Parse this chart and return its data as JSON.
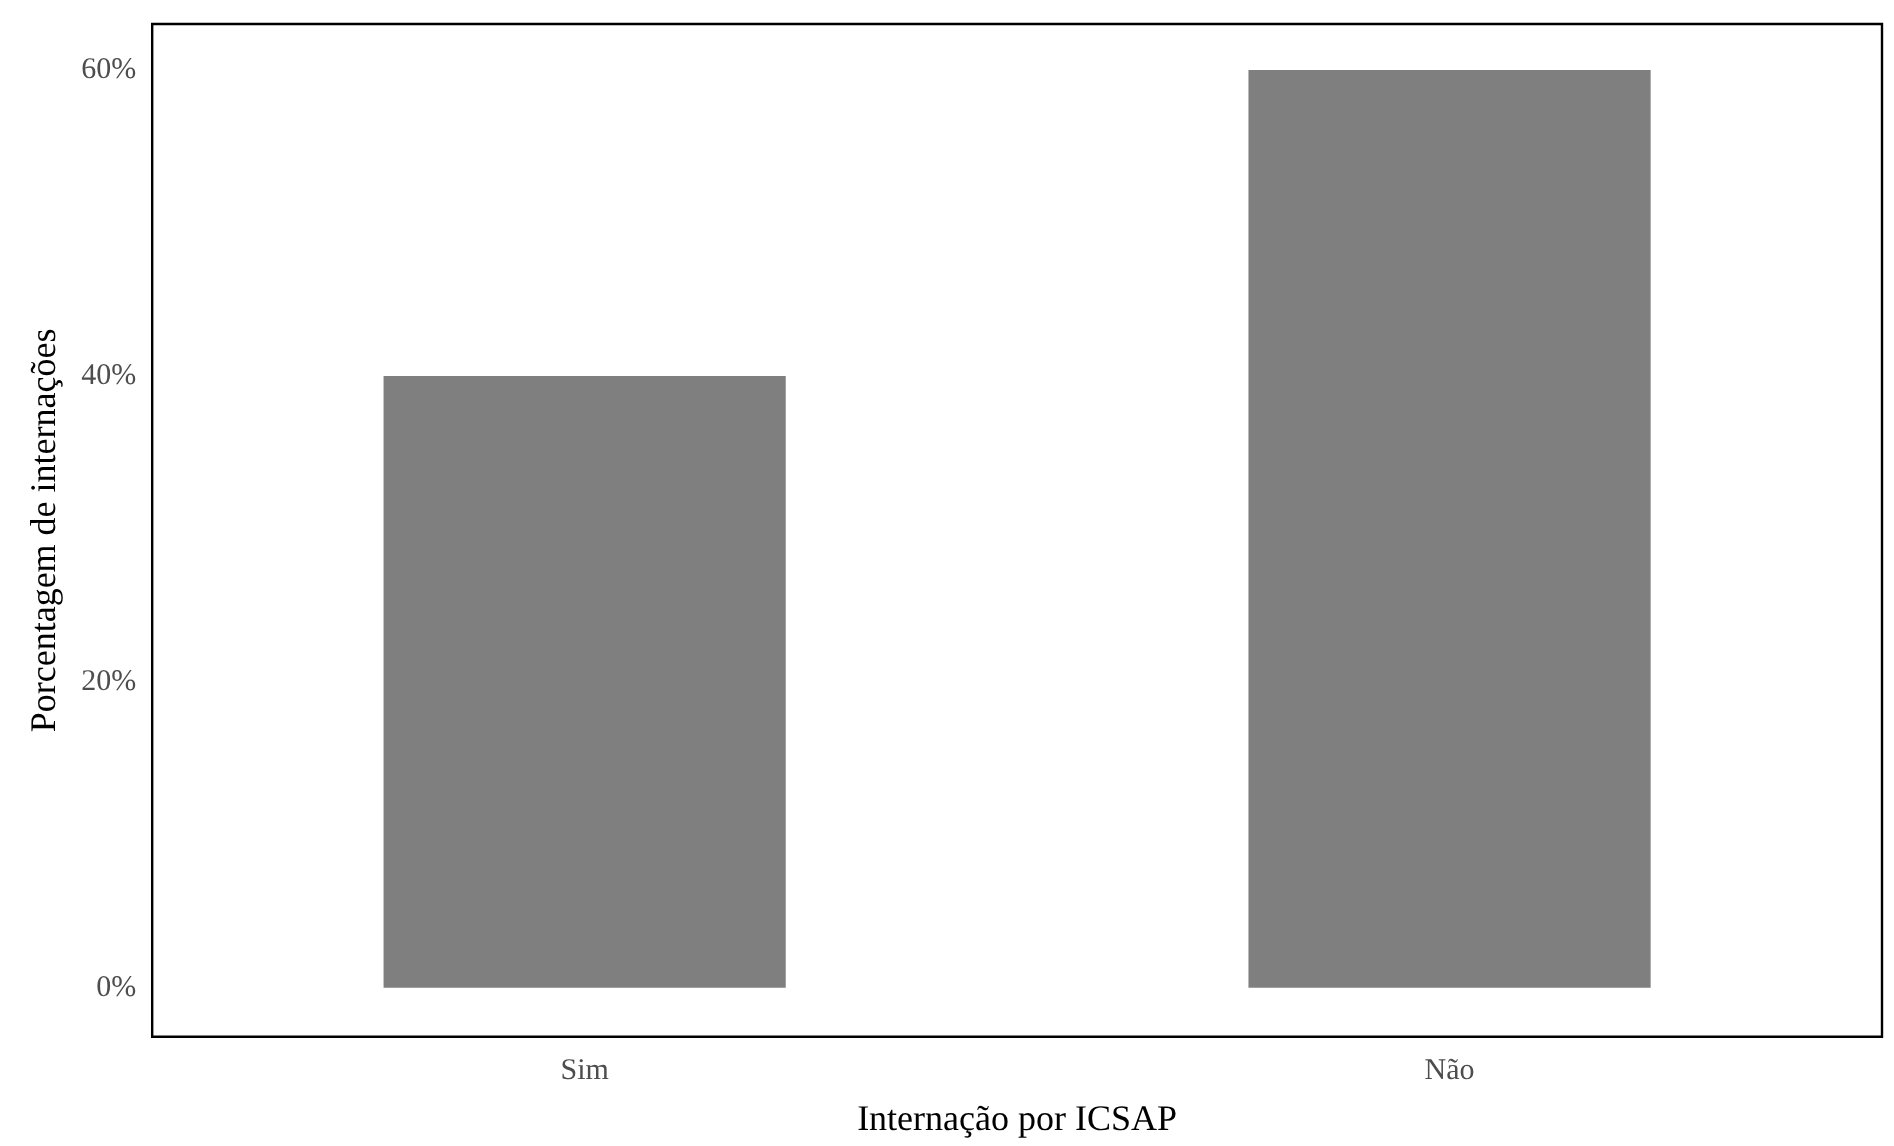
{
  "chart_data": {
    "type": "bar",
    "xlabel": "Internação por ICSAP",
    "ylabel": "Porcentagem de internações",
    "categories": [
      "Sim",
      "Não"
    ],
    "values": [
      40,
      60
    ],
    "color": "#7f7f7f",
    "ylim": [
      -3.2,
      63
    ],
    "yticks": [
      {
        "value": 0,
        "label": "0%"
      },
      {
        "value": 20,
        "label": "20%"
      },
      {
        "value": 40,
        "label": "40%"
      },
      {
        "value": 60,
        "label": "60%"
      }
    ],
    "grid": false,
    "legend": false
  }
}
